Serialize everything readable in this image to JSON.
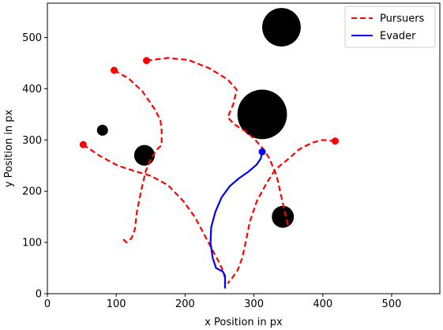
{
  "chart_data": {
    "type": "line",
    "xlabel": "x Position in px",
    "ylabel": "y Position in px",
    "xlim": [
      0,
      570
    ],
    "ylim": [
      0,
      567
    ],
    "xticks": [
      0,
      100,
      200,
      300,
      400,
      500
    ],
    "yticks": [
      0,
      100,
      200,
      300,
      400,
      500
    ],
    "grid": false,
    "legend_position": "top-right",
    "colors": {
      "pursuers": "#ff0000",
      "evader": "#0000ff",
      "obstacles": "#000000"
    },
    "legend": [
      {
        "label": "Pursuers",
        "style": "dashed",
        "color": "#ff0000"
      },
      {
        "label": "Evader",
        "style": "solid",
        "color": "#0000ff"
      }
    ],
    "obstacles": [
      {
        "x": 340,
        "y": 520,
        "r": 28
      },
      {
        "x": 312,
        "y": 350,
        "r": 36
      },
      {
        "x": 141,
        "y": 270,
        "r": 15
      },
      {
        "x": 342,
        "y": 150,
        "r": 16
      },
      {
        "x": 80,
        "y": 319,
        "r": 8
      }
    ],
    "series": [
      {
        "name": "Pursuers",
        "points": [
          [
            97,
            436
          ],
          [
            118,
            420
          ],
          [
            138,
            395
          ],
          [
            155,
            362
          ],
          [
            164,
            340
          ],
          [
            166,
            320
          ],
          [
            166,
            290
          ],
          [
            158,
            280
          ],
          [
            150,
            262
          ],
          [
            143,
            240
          ],
          [
            136,
            200
          ],
          [
            130,
            160
          ],
          [
            127,
            125
          ],
          [
            122,
            108
          ],
          [
            115,
            100
          ],
          [
            109,
            108
          ]
        ],
        "start": [
          97,
          436
        ]
      },
      {
        "series": "Pursuers",
        "points": [
          [
            144,
            455
          ],
          [
            175,
            460
          ],
          [
            205,
            456
          ],
          [
            235,
            440
          ],
          [
            262,
            418
          ],
          [
            275,
            398
          ],
          [
            270,
            370
          ],
          [
            262,
            344
          ],
          [
            272,
            330
          ],
          [
            290,
            315
          ],
          [
            302,
            300
          ],
          [
            312,
            285
          ],
          [
            322,
            265
          ],
          [
            333,
            230
          ],
          [
            338,
            200
          ],
          [
            344,
            165
          ],
          [
            350,
            130
          ]
        ],
        "start": [
          144,
          455
        ]
      },
      {
        "series": "Pursuers",
        "points": [
          [
            52,
            291
          ],
          [
            75,
            270
          ],
          [
            102,
            250
          ],
          [
            125,
            240
          ],
          [
            150,
            230
          ],
          [
            175,
            212
          ],
          [
            198,
            180
          ],
          [
            214,
            150
          ],
          [
            226,
            120
          ],
          [
            237,
            92
          ],
          [
            248,
            65
          ],
          [
            255,
            45
          ],
          [
            258,
            30
          ],
          [
            258,
            18
          ]
        ],
        "start": [
          52,
          291
        ]
      },
      {
        "series": "Pursuers",
        "points": [
          [
            418,
            298
          ],
          [
            400,
            300
          ],
          [
            385,
            295
          ],
          [
            366,
            282
          ],
          [
            350,
            263
          ],
          [
            338,
            250
          ],
          [
            330,
            240
          ],
          [
            318,
            215
          ],
          [
            304,
            180
          ],
          [
            294,
            140
          ],
          [
            288,
            100
          ],
          [
            283,
            70
          ],
          [
            276,
            45
          ],
          [
            268,
            30
          ],
          [
            262,
            20
          ]
        ],
        "start": [
          418,
          298
        ]
      },
      {
        "name": "Evader",
        "points": [
          [
            312,
            277
          ],
          [
            310,
            264
          ],
          [
            304,
            252
          ],
          [
            292,
            238
          ],
          [
            278,
            225
          ],
          [
            265,
            210
          ],
          [
            253,
            188
          ],
          [
            244,
            160
          ],
          [
            238,
            130
          ],
          [
            237,
            100
          ],
          [
            240,
            70
          ],
          [
            245,
            50
          ],
          [
            255,
            43
          ],
          [
            258,
            35
          ],
          [
            258,
            10
          ]
        ],
        "start": [
          312,
          277
        ]
      }
    ]
  }
}
